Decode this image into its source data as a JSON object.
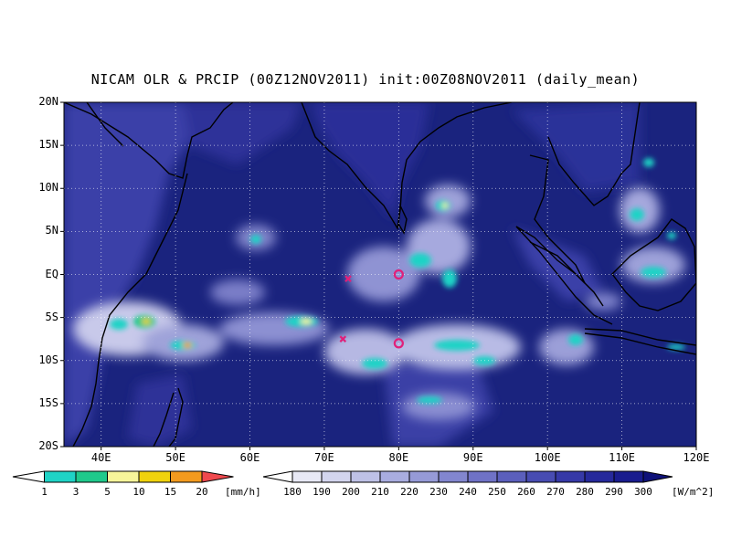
{
  "title": "NICAM OLR & PRCIP (00Z12NOV2011) init:00Z08NOV2011 (daily_mean)",
  "map": {
    "lat_range": [
      -20,
      20
    ],
    "lon_range": [
      35,
      120
    ],
    "y_labels": [
      "20N",
      "15N",
      "10N",
      "5N",
      "EQ",
      "5S",
      "10S",
      "15S",
      "20S"
    ],
    "x_labels": [
      "40E",
      "50E",
      "60E",
      "70E",
      "80E",
      "90E",
      "100E",
      "110E",
      "120E"
    ],
    "grid": "dotted",
    "ocean_color": "#1a237e",
    "markers": [
      {
        "type": "x",
        "lat": -0.5,
        "lon": 73.2,
        "color": "#e0207a"
      },
      {
        "type": "x",
        "lat": -7.5,
        "lon": 72.5,
        "color": "#e0207a"
      },
      {
        "type": "o",
        "lat": 0.0,
        "lon": 80.0,
        "color": "#e0207a"
      },
      {
        "type": "o",
        "lat": -8.0,
        "lon": 80.0,
        "color": "#e0207a"
      }
    ]
  },
  "precip_colorbar": {
    "labels": [
      "1",
      "3",
      "5",
      "10",
      "15",
      "20"
    ],
    "unit": "[mm/h]",
    "colors": [
      "#ffffff",
      "#1fd3c6",
      "#1fc98b",
      "#f7f59a",
      "#f0d20c",
      "#f39a1e",
      "#f0494e"
    ]
  },
  "olr_colorbar": {
    "labels": [
      "180",
      "190",
      "200",
      "210",
      "220",
      "230",
      "240",
      "250",
      "260",
      "270",
      "280",
      "290",
      "300"
    ],
    "unit": "[W/m^2]",
    "colors": [
      "#ffffff",
      "#e8e9f5",
      "#d3d5ee",
      "#bec1e6",
      "#a9addf",
      "#969ad7",
      "#8286cf",
      "#6f72c6",
      "#5b5fbc",
      "#484cb2",
      "#3639a7",
      "#26299b",
      "#191c8e",
      "#0f1279"
    ]
  }
}
